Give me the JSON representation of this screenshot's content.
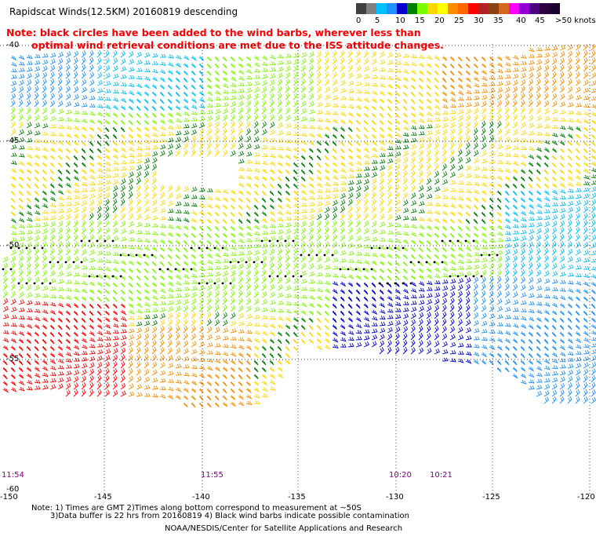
{
  "title": "Rapidscat Winds(12.5KM) 20160819 descending",
  "scale": {
    "colors": [
      "#404040",
      "#808080",
      "#00bfff",
      "#1e90ff",
      "#0000cd",
      "#008000",
      "#7cfc00",
      "#ffd700",
      "#ffff00",
      "#ff8c00",
      "#ff6600",
      "#ff0000",
      "#b22222",
      "#8b4513",
      "#d2691e",
      "#ff00ff",
      "#9400d3",
      "#4b0082",
      "#2f0040",
      "#1a0030"
    ],
    "labels": [
      "0",
      "5",
      "10",
      "15",
      "20",
      "25",
      "30",
      "35",
      "40",
      "45",
      ">50 knots"
    ]
  },
  "note": {
    "line1": "Note: black circles have been added to the wind barbs, wherever less than",
    "line2": "optimal wind retrieval conditions are met due to the ISS attitude changes."
  },
  "latitudes": [
    "-40",
    "-45",
    "-50",
    "-55",
    "-60"
  ],
  "longitudes": [
    "-150",
    "-145",
    "-140",
    "-135",
    "-130",
    "-125",
    "-120"
  ],
  "times": [
    "11:54",
    "11:55",
    "10:20",
    "10:21"
  ],
  "footnote": {
    "line1": "Note: 1) Times are GMT 2)Times along bottom correspond to measurement at ~50S",
    "line2": "3)Data buffer is 22 hrs from 20160819 4) Black wind barbs indicate possible contamination"
  },
  "credit": "NOAA/NESDIS/Center for Satellite Applications and Research",
  "barb_colors": [
    "#0000cd",
    "#1e90ff",
    "#00bfff",
    "#008000",
    "#7cfc00",
    "#ffd700",
    "#ff8c00",
    "#ff0000",
    "#b22222",
    "#000000"
  ]
}
